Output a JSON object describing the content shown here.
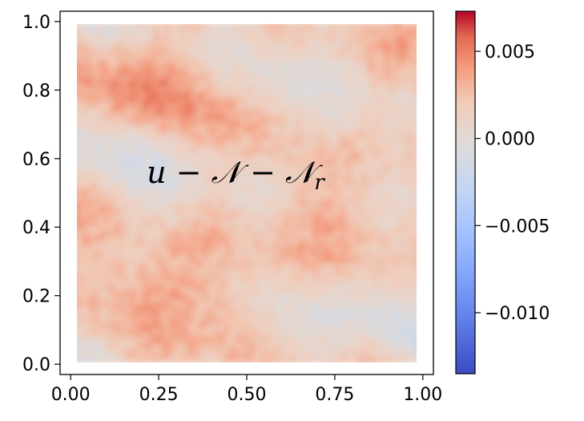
{
  "chart_data": {
    "type": "heatmap",
    "title": "",
    "xlabel": "",
    "ylabel": "",
    "xlim": [
      -0.03,
      1.03
    ],
    "ylim": [
      -0.03,
      1.03
    ],
    "x_ticks": [
      0.0,
      0.25,
      0.5,
      0.75,
      1.0
    ],
    "x_tick_labels": [
      "0.00",
      "0.25",
      "0.50",
      "0.75",
      "1.00"
    ],
    "y_ticks": [
      0.0,
      0.2,
      0.4,
      0.6,
      0.8,
      1.0
    ],
    "y_tick_labels": [
      "0.0",
      "0.2",
      "0.4",
      "0.6",
      "0.8",
      "1.0"
    ],
    "annotation": {
      "text": "u − 𝒩 − 𝒩",
      "subscript": "r",
      "x": 0.5,
      "y": 0.56
    },
    "colorbar": {
      "colormap": "coolwarm",
      "vmin": -0.0135,
      "vmax": 0.0073,
      "ticks": [
        0.005,
        0.0,
        -0.005,
        -0.01
      ],
      "tick_labels": [
        "0.005",
        "0.000",
        "−0.005",
        "−0.010"
      ],
      "colors": {
        "low": "#3b4cc0",
        "mid": "#dddddd",
        "high": "#b40426"
      }
    },
    "grid": false,
    "field_typical_range": [
      -0.003,
      0.005
    ],
    "field_extent": [
      0.0,
      1.0
    ]
  }
}
